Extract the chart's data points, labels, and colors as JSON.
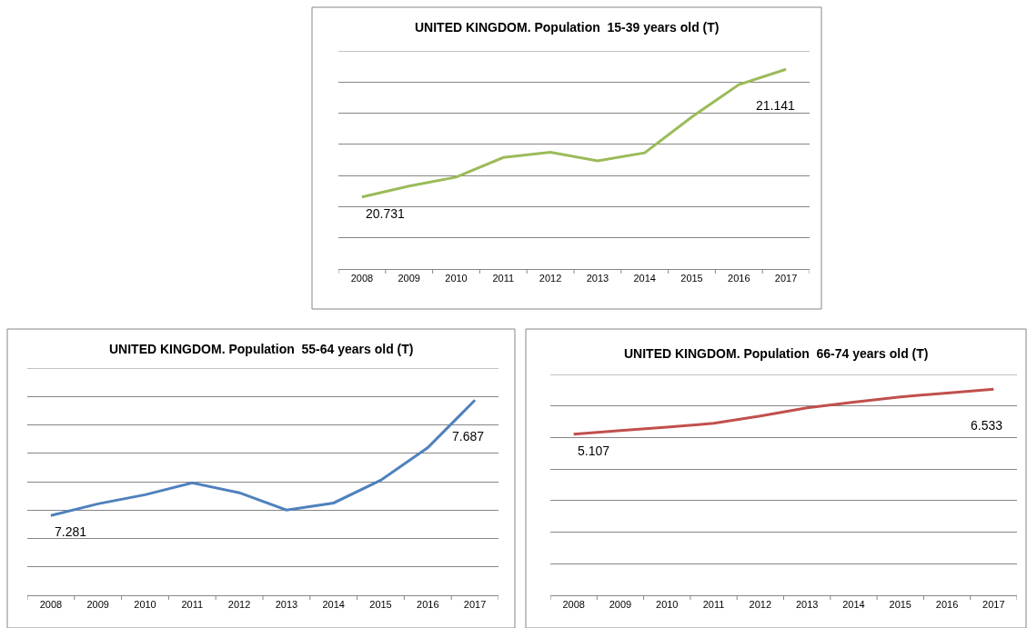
{
  "chart_data": [
    {
      "type": "line",
      "title": "UNITED KINGDOM. Population  15-39 years old (T)",
      "categories": [
        "2008",
        "2009",
        "2010",
        "2011",
        "2012",
        "2013",
        "2014",
        "2015",
        "2016",
        "2017"
      ],
      "series": [
        {
          "color": "#9bbb59",
          "values": [
            20.731,
            20.766,
            20.795,
            20.858,
            20.875,
            20.847,
            20.873,
            20.988,
            21.092,
            21.141
          ],
          "value_labels": [
            "20.731",
            null,
            null,
            null,
            null,
            null,
            null,
            null,
            null,
            "21.141"
          ]
        }
      ],
      "ylim": [
        20.5,
        21.2
      ],
      "yticks": [
        {
          "value": 20.5,
          "label": null
        },
        {
          "value": 20.6,
          "label": null
        },
        {
          "value": 20.7,
          "label": null
        },
        {
          "value": 20.8,
          "label": null
        },
        {
          "value": 20.9,
          "label": null
        },
        {
          "value": 21.0,
          "label": null
        },
        {
          "value": 21.1,
          "label": null
        },
        {
          "value": 21.2,
          "label": null
        }
      ],
      "grid": "y",
      "tick_labels": "x",
      "marker": "none",
      "line_style": "solid"
    },
    {
      "type": "line",
      "title": "UNITED KINGDOM. Population  55-64 years old (T)",
      "categories": [
        "2008",
        "2009",
        "2010",
        "2011",
        "2012",
        "2013",
        "2014",
        "2015",
        "2016",
        "2017"
      ],
      "series": [
        {
          "color": "#4f81bd",
          "values": [
            7.281,
            7.322,
            7.354,
            7.396,
            7.361,
            7.3,
            7.325,
            7.405,
            7.52,
            7.687
          ],
          "value_labels": [
            "7.281",
            null,
            null,
            null,
            null,
            null,
            null,
            null,
            null,
            "7.687"
          ]
        }
      ],
      "ylim": [
        7.0,
        7.8
      ],
      "yticks": [
        {
          "value": 7.0,
          "label": null
        },
        {
          "value": 7.1,
          "label": null
        },
        {
          "value": 7.2,
          "label": null
        },
        {
          "value": 7.3,
          "label": null
        },
        {
          "value": 7.4,
          "label": null
        },
        {
          "value": 7.5,
          "label": null
        },
        {
          "value": 7.6,
          "label": null
        },
        {
          "value": 7.7,
          "label": null
        },
        {
          "value": 7.8,
          "label": null
        }
      ],
      "grid": "y",
      "tick_labels": "x",
      "marker": "none",
      "line_style": "solid"
    },
    {
      "type": "line",
      "title": "UNITED KINGDOM. Population  66-74 years old (T)",
      "categories": [
        "2008",
        "2009",
        "2010",
        "2011",
        "2012",
        "2013",
        "2014",
        "2015",
        "2016",
        "2017"
      ],
      "series": [
        {
          "color": "#c0504d",
          "values": [
            5.107,
            5.22,
            5.33,
            5.45,
            5.68,
            5.94,
            6.12,
            6.29,
            6.41,
            6.533
          ],
          "value_labels": [
            "5.107",
            null,
            null,
            null,
            null,
            null,
            null,
            null,
            null,
            "6.533"
          ]
        }
      ],
      "ylim": [
        0,
        7
      ],
      "yticks": [
        {
          "value": 0,
          "label": null
        },
        {
          "value": 1,
          "label": null
        },
        {
          "value": 2,
          "label": null
        },
        {
          "value": 3,
          "label": null
        },
        {
          "value": 4,
          "label": null
        },
        {
          "value": 5,
          "label": null
        },
        {
          "value": 6,
          "label": null
        },
        {
          "value": 7,
          "label": null
        }
      ],
      "grid": "y",
      "tick_labels": "x",
      "marker": "none",
      "line_style": "solid"
    }
  ]
}
